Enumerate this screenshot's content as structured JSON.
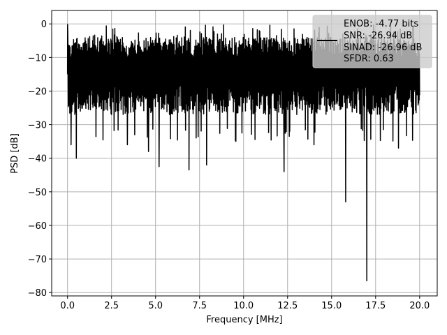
{
  "chart_data": {
    "type": "line",
    "xlabel": "Frequency [MHz]",
    "ylabel": "PSD [dB]",
    "xlim": [
      -0.9,
      21.0
    ],
    "ylim": [
      -81,
      4
    ],
    "xticks": [
      0.0,
      2.5,
      5.0,
      7.5,
      10.0,
      12.5,
      15.0,
      17.5,
      20.0
    ],
    "xtick_labels": [
      "0.0",
      "2.5",
      "5.0",
      "7.5",
      "10.0",
      "12.5",
      "15.0",
      "17.5",
      "20.0"
    ],
    "yticks": [
      0,
      -10,
      -20,
      -30,
      -40,
      -50,
      -60,
      -70,
      -80
    ],
    "ytick_labels": [
      "0",
      "−10",
      "−20",
      "−30",
      "−40",
      "−50",
      "−60",
      "−70",
      "−80"
    ],
    "grid": true,
    "legend_placement": "top-right",
    "legend_entries": [
      "ENOB: -4.77 bits",
      "SNR: -26.94 dB",
      "SINAD: -26.96 dB",
      "SFDR: 0.63"
    ],
    "series": [
      {
        "color": "#000000",
        "x_range": [
          0.0,
          20.0
        ],
        "typical_range_db": [
          -27,
          -4
        ],
        "peak_db": -0.2,
        "notches": [
          {
            "x": 0.2,
            "y": -36
          },
          {
            "x": 0.5,
            "y": -40
          },
          {
            "x": 3.4,
            "y": -36
          },
          {
            "x": 4.6,
            "y": -38
          },
          {
            "x": 5.2,
            "y": -42.5
          },
          {
            "x": 6.9,
            "y": -43.5
          },
          {
            "x": 7.9,
            "y": -42
          },
          {
            "x": 12.3,
            "y": -44
          },
          {
            "x": 14.0,
            "y": -36
          },
          {
            "x": 15.8,
            "y": -53
          },
          {
            "x": 17.0,
            "y": -76.5
          },
          {
            "x": 18.8,
            "y": -37
          }
        ]
      }
    ]
  }
}
